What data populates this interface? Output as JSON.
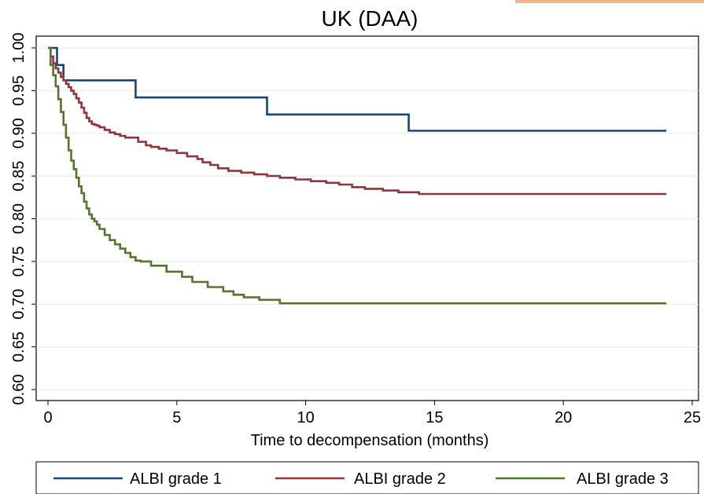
{
  "chart_data": {
    "type": "line",
    "step": true,
    "title": "UK (DAA)",
    "xlabel": "Time to decompensation (months)",
    "ylabel": "",
    "xlim": [
      0,
      25
    ],
    "ylim": [
      0.6,
      1.0
    ],
    "xticks": [
      0,
      5,
      10,
      15,
      20,
      25
    ],
    "xtick_labels": [
      "0",
      "5",
      "10",
      "15",
      "20",
      "25"
    ],
    "yticks": [
      0.6,
      0.65,
      0.7,
      0.75,
      0.8,
      0.85,
      0.9,
      0.95,
      1.0
    ],
    "ytick_labels": [
      "0.60",
      "0.65",
      "0.70",
      "0.75",
      "0.80",
      "0.85",
      "0.90",
      "0.95",
      "1.00"
    ],
    "grid": true,
    "legend_position": "bottom",
    "series": [
      {
        "name": "ALBI grade 1",
        "color": "#1a476f",
        "x": [
          0,
          0.35,
          0.6,
          3.4,
          8.5,
          14.0,
          24.0
        ],
        "y": [
          1.0,
          0.98,
          0.962,
          0.942,
          0.922,
          0.903,
          0.903
        ]
      },
      {
        "name": "ALBI grade 2",
        "color": "#90353b",
        "x": [
          0,
          0.1,
          0.2,
          0.3,
          0.4,
          0.5,
          0.6,
          0.7,
          0.8,
          0.9,
          1.0,
          1.1,
          1.2,
          1.3,
          1.4,
          1.5,
          1.6,
          1.7,
          1.8,
          1.9,
          2.0,
          2.2,
          2.4,
          2.6,
          2.8,
          3.0,
          3.5,
          3.8,
          4.0,
          4.3,
          4.6,
          5.0,
          5.4,
          5.8,
          6.0,
          6.3,
          6.6,
          7.0,
          7.5,
          8.0,
          8.5,
          9.0,
          9.6,
          10.2,
          10.8,
          11.3,
          11.8,
          12.3,
          13.0,
          13.6,
          14.4,
          24.0
        ],
        "y": [
          1.0,
          0.99,
          0.982,
          0.976,
          0.971,
          0.966,
          0.962,
          0.958,
          0.954,
          0.95,
          0.946,
          0.941,
          0.936,
          0.93,
          0.924,
          0.918,
          0.914,
          0.911,
          0.91,
          0.909,
          0.907,
          0.904,
          0.901,
          0.899,
          0.897,
          0.895,
          0.89,
          0.886,
          0.884,
          0.882,
          0.88,
          0.877,
          0.873,
          0.87,
          0.866,
          0.863,
          0.859,
          0.856,
          0.854,
          0.852,
          0.85,
          0.848,
          0.846,
          0.844,
          0.842,
          0.84,
          0.837,
          0.835,
          0.833,
          0.831,
          0.829,
          0.829
        ]
      },
      {
        "name": "ALBI grade 3",
        "color": "#55752f",
        "x": [
          0,
          0.1,
          0.2,
          0.3,
          0.4,
          0.5,
          0.6,
          0.7,
          0.8,
          0.9,
          1.0,
          1.1,
          1.2,
          1.3,
          1.4,
          1.5,
          1.6,
          1.7,
          1.8,
          1.9,
          2.0,
          2.2,
          2.4,
          2.6,
          2.8,
          3.0,
          3.2,
          3.4,
          3.6,
          4.0,
          4.6,
          5.2,
          5.6,
          6.2,
          6.8,
          7.2,
          7.6,
          8.2,
          9.0,
          24.0
        ],
        "y": [
          1.0,
          0.98,
          0.968,
          0.955,
          0.94,
          0.925,
          0.91,
          0.895,
          0.88,
          0.868,
          0.858,
          0.848,
          0.838,
          0.83,
          0.82,
          0.812,
          0.805,
          0.8,
          0.797,
          0.793,
          0.788,
          0.781,
          0.775,
          0.77,
          0.765,
          0.76,
          0.755,
          0.751,
          0.75,
          0.745,
          0.738,
          0.732,
          0.726,
          0.72,
          0.715,
          0.711,
          0.708,
          0.705,
          0.701,
          0.701
        ]
      }
    ]
  }
}
